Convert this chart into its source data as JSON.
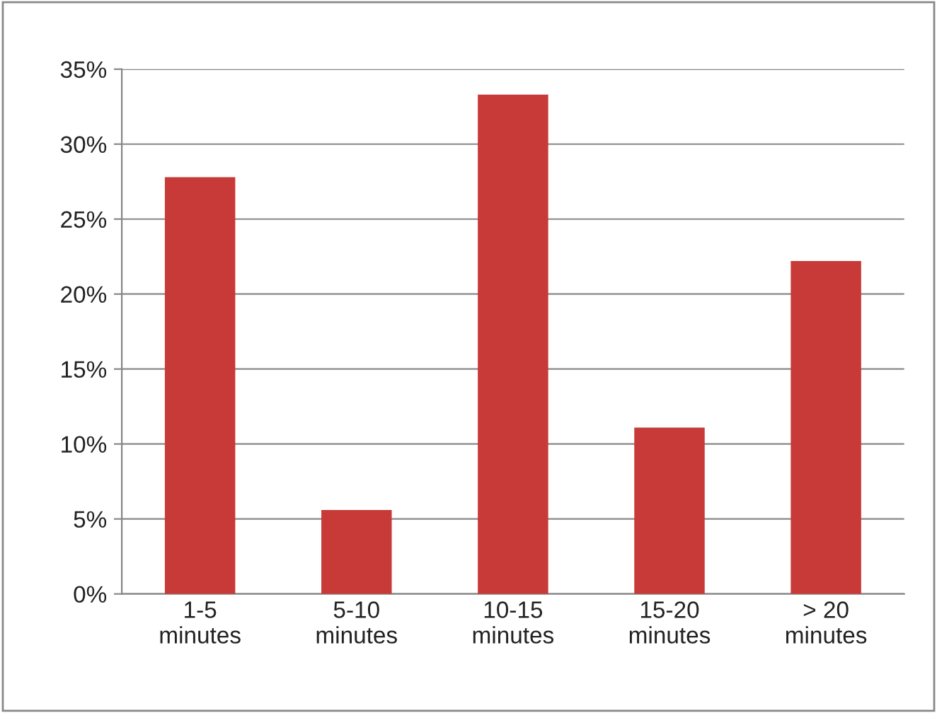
{
  "chart_data": {
    "type": "bar",
    "categories": [
      "1-5\nminutes",
      "5-10\nminutes",
      "10-15\nminutes",
      "15-20\nminutes",
      "> 20\nminutes"
    ],
    "values": [
      27.8,
      5.6,
      33.3,
      11.1,
      22.2
    ],
    "color": "#c83a38",
    "ylim": [
      0,
      35
    ],
    "yticks": [
      {
        "value": 0,
        "label": "0%"
      },
      {
        "value": 5,
        "label": "5%"
      },
      {
        "value": 10,
        "label": "10%"
      },
      {
        "value": 15,
        "label": "15%"
      },
      {
        "value": 20,
        "label": "20%"
      },
      {
        "value": 25,
        "label": "25%"
      },
      {
        "value": 30,
        "label": "30%"
      },
      {
        "value": 35,
        "label": "35%"
      }
    ],
    "grid": "y"
  }
}
